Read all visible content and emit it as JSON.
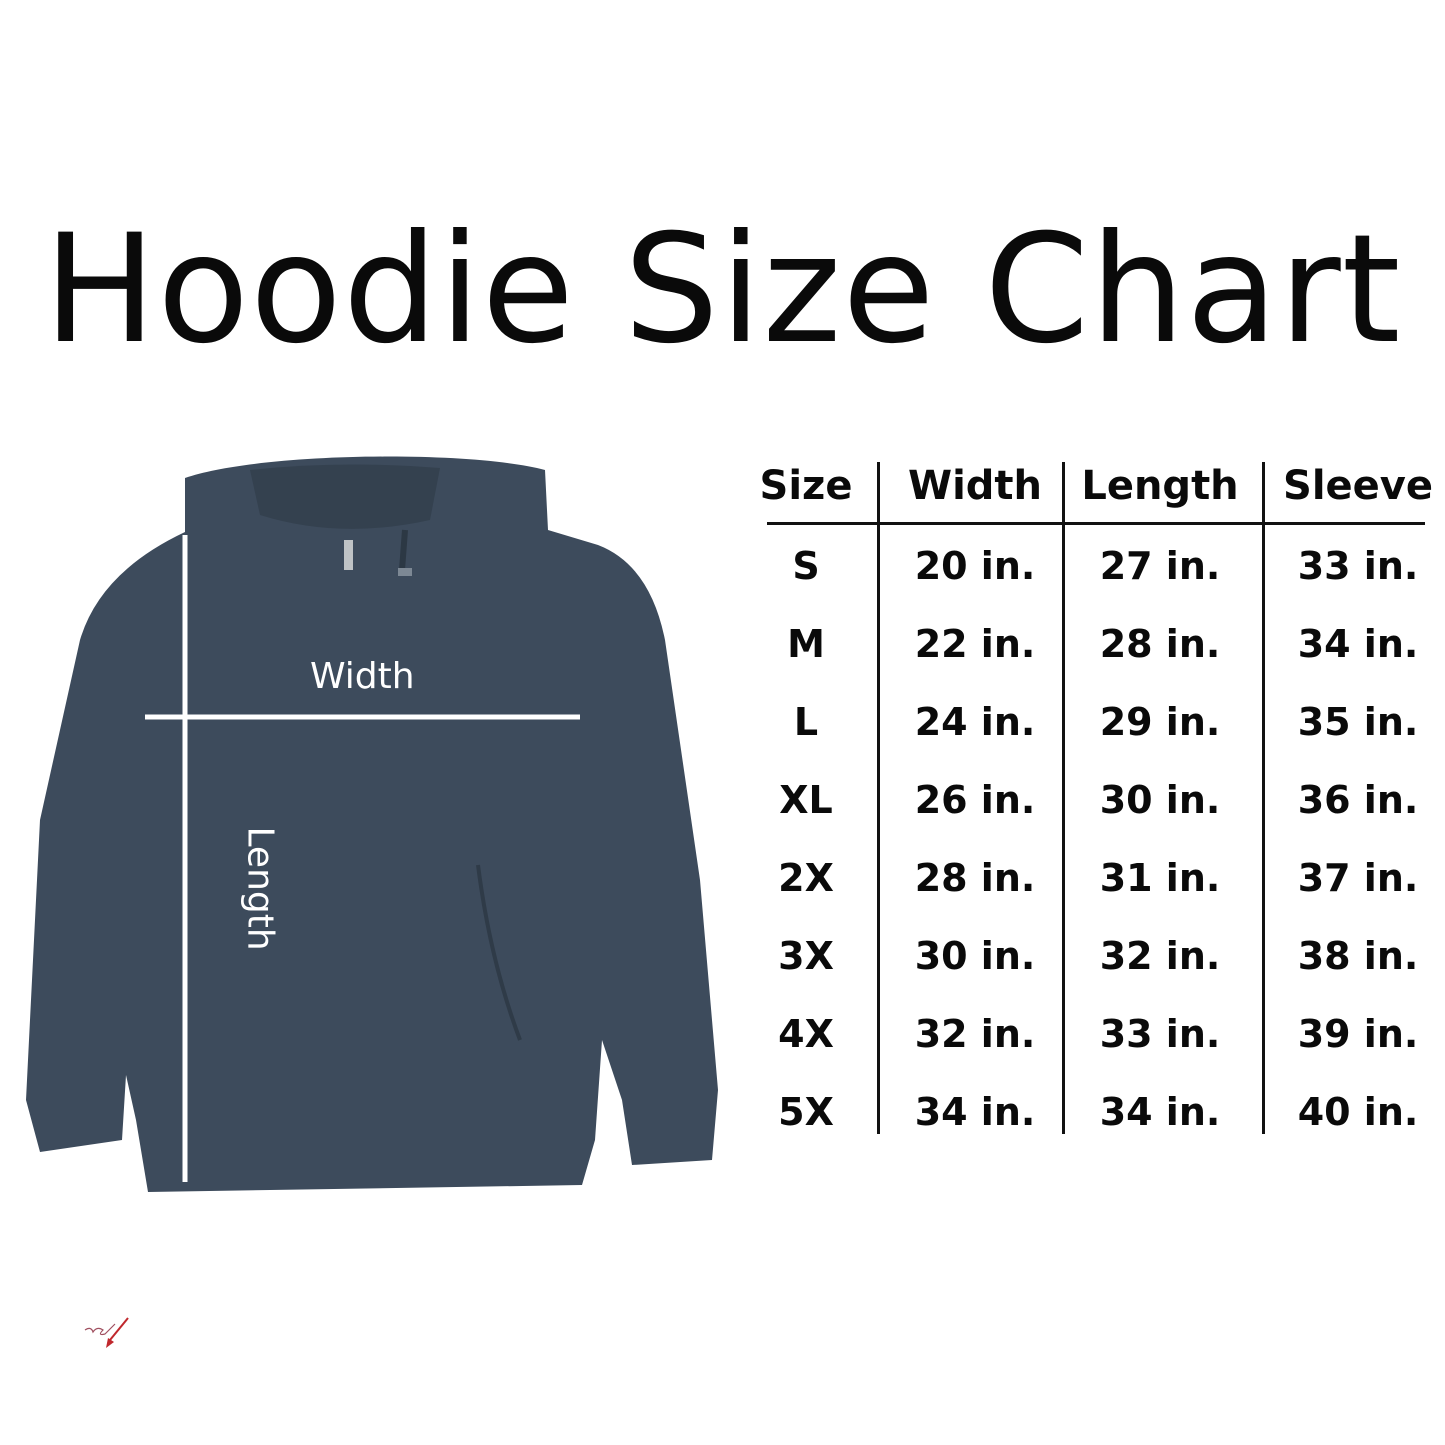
{
  "title": "Hoodie Size Chart",
  "garment": {
    "color": "#3d4b5c",
    "width_label": "Width",
    "length_label": "Length"
  },
  "table": {
    "headers": [
      "Size",
      "Width",
      "Length",
      "Sleeve"
    ],
    "rows": [
      [
        "S",
        "20 in.",
        "27 in.",
        "33 in."
      ],
      [
        "M",
        "22 in.",
        "28 in.",
        "34 in."
      ],
      [
        "L",
        "24 in.",
        "29 in.",
        "35 in."
      ],
      [
        "XL",
        "26 in.",
        "30 in.",
        "36 in."
      ],
      [
        "2X",
        "28 in.",
        "31 in.",
        "37 in."
      ],
      [
        "3X",
        "30 in.",
        "32 in.",
        "38 in."
      ],
      [
        "4X",
        "32 in.",
        "33 in.",
        "39 in."
      ],
      [
        "5X",
        "34 in.",
        "34 in.",
        "40 in."
      ]
    ]
  },
  "logo": {
    "text": "red",
    "color": "#c0282d"
  }
}
